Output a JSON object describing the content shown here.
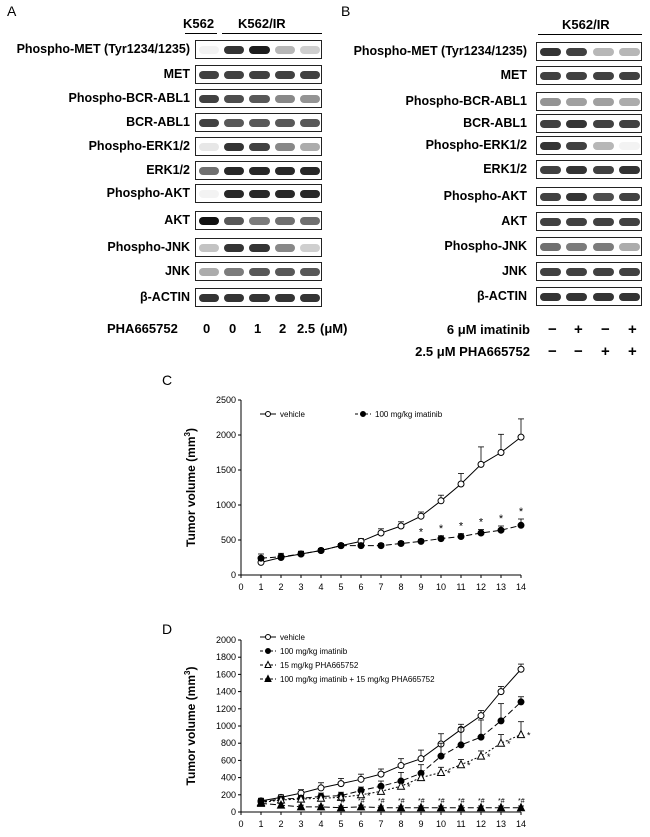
{
  "panels": {
    "a": "A",
    "b": "B",
    "c": "C",
    "d": "D"
  },
  "panelA": {
    "header_k562": "K562",
    "header_k562ir": "K562/IR",
    "rows": [
      "Phospho-MET (Tyr1234/1235)",
      "MET",
      "Phospho-BCR-ABL1",
      "BCR-ABL1",
      "Phospho-ERK1/2",
      "ERK1/2",
      "Phospho-AKT",
      "AKT",
      "Phospho-JNK",
      "JNK",
      "β-ACTIN"
    ],
    "bands": [
      [
        0.05,
        0.85,
        0.95,
        0.3,
        0.2
      ],
      [
        0.8,
        0.8,
        0.8,
        0.8,
        0.8
      ],
      [
        0.8,
        0.75,
        0.7,
        0.5,
        0.45
      ],
      [
        0.8,
        0.7,
        0.7,
        0.7,
        0.7
      ],
      [
        0.1,
        0.85,
        0.8,
        0.5,
        0.35
      ],
      [
        0.6,
        0.9,
        0.9,
        0.9,
        0.9
      ],
      [
        0.05,
        0.9,
        0.9,
        0.9,
        0.9
      ],
      [
        1.0,
        0.7,
        0.55,
        0.6,
        0.6
      ],
      [
        0.25,
        0.85,
        0.85,
        0.5,
        0.2
      ],
      [
        0.35,
        0.55,
        0.7,
        0.7,
        0.7
      ],
      [
        0.85,
        0.85,
        0.85,
        0.85,
        0.85
      ]
    ],
    "dose_label": "PHA665752",
    "doses": [
      "0",
      "0",
      "1",
      "2",
      "2.5"
    ],
    "unit": "(μM)"
  },
  "panelB": {
    "header": "K562/IR",
    "rows": [
      "Phospho-MET (Tyr1234/1235)",
      "MET",
      "Phospho-BCR-ABL1",
      "BCR-ABL1",
      "Phospho-ERK1/2",
      "ERK1/2",
      "Phospho-AKT",
      "AKT",
      "Phospho-JNK",
      "JNK",
      "β-ACTIN"
    ],
    "bands": [
      [
        0.85,
        0.8,
        0.3,
        0.3
      ],
      [
        0.8,
        0.8,
        0.8,
        0.8
      ],
      [
        0.45,
        0.4,
        0.4,
        0.35
      ],
      [
        0.8,
        0.85,
        0.8,
        0.8
      ],
      [
        0.85,
        0.8,
        0.3,
        0.05
      ],
      [
        0.8,
        0.85,
        0.8,
        0.85
      ],
      [
        0.8,
        0.85,
        0.75,
        0.8
      ],
      [
        0.8,
        0.8,
        0.8,
        0.8
      ],
      [
        0.6,
        0.55,
        0.55,
        0.35
      ],
      [
        0.8,
        0.8,
        0.8,
        0.8
      ],
      [
        0.85,
        0.85,
        0.85,
        0.85
      ]
    ],
    "treatments": [
      {
        "label": "6 μM imatinib",
        "signs": [
          "−",
          "+",
          "−",
          "+"
        ]
      },
      {
        "label": "2.5 μM PHA665752",
        "signs": [
          "−",
          "−",
          "+",
          "+"
        ]
      }
    ]
  },
  "chart_data": [
    {
      "type": "line",
      "title": "C",
      "xlabel": "",
      "ylabel": "Tumor volume (mm3)",
      "xlim": [
        0,
        14
      ],
      "ylim": [
        0,
        2500
      ],
      "xticks": [
        "0",
        "1",
        "2",
        "3",
        "4",
        "5",
        "6",
        "7",
        "8",
        "9",
        "10",
        "11",
        "12",
        "13",
        "14"
      ],
      "yticks": [
        "0",
        "500",
        "1000",
        "1500",
        "2000",
        "2500"
      ],
      "x": [
        1,
        2,
        3,
        4,
        5,
        6,
        7,
        8,
        9,
        10,
        11,
        12,
        13,
        14
      ],
      "series": [
        {
          "name": "vehicle",
          "marker": "open-circle",
          "dash": false,
          "values": [
            180,
            250,
            300,
            350,
            420,
            480,
            600,
            700,
            840,
            1060,
            1300,
            1580,
            1750,
            1970
          ],
          "errors": [
            30,
            40,
            30,
            30,
            30,
            40,
            60,
            60,
            60,
            80,
            150,
            250,
            260,
            260
          ]
        },
        {
          "name": "100 mg/kg imatinib",
          "marker": "filled-circle",
          "dash": true,
          "values": [
            240,
            260,
            300,
            350,
            420,
            420,
            420,
            450,
            480,
            520,
            550,
            600,
            640,
            710
          ],
          "errors": [
            60,
            50,
            40,
            30,
            30,
            30,
            30,
            30,
            30,
            40,
            40,
            50,
            60,
            90
          ]
        }
      ],
      "annotations": {
        "symbol": "*",
        "x": [
          9,
          10,
          11,
          12,
          13,
          14
        ]
      }
    },
    {
      "type": "line",
      "title": "D",
      "xlabel": "",
      "ylabel": "Tumor volume (mm3)",
      "xlim": [
        0,
        14
      ],
      "ylim": [
        0,
        2000
      ],
      "xticks": [
        "0",
        "1",
        "2",
        "3",
        "4",
        "5",
        "6",
        "7",
        "8",
        "9",
        "10",
        "11",
        "12",
        "13",
        "14"
      ],
      "yticks": [
        "0",
        "200",
        "400",
        "600",
        "800",
        "1000",
        "1200",
        "1400",
        "1600",
        "1800",
        "2000"
      ],
      "x": [
        1,
        2,
        3,
        4,
        5,
        6,
        7,
        8,
        9,
        10,
        11,
        12,
        13,
        14
      ],
      "series": [
        {
          "name": "vehicle",
          "marker": "open-circle",
          "dash": false,
          "values": [
            130,
            170,
            220,
            280,
            330,
            380,
            440,
            540,
            620,
            790,
            960,
            1120,
            1400,
            1660
          ],
          "errors": [
            30,
            30,
            40,
            60,
            60,
            60,
            60,
            80,
            100,
            120,
            60,
            60,
            60,
            60
          ]
        },
        {
          "name": "100 mg/kg imatinib",
          "marker": "filled-circle",
          "dash": true,
          "values": [
            120,
            150,
            160,
            180,
            190,
            250,
            300,
            360,
            450,
            650,
            780,
            870,
            1060,
            1280
          ],
          "errors": [
            30,
            30,
            30,
            40,
            40,
            40,
            60,
            100,
            100,
            150,
            200,
            200,
            200,
            60
          ]
        },
        {
          "name": "15 mg/kg PHA665752",
          "marker": "open-triangle",
          "dash": true,
          "values": [
            110,
            140,
            150,
            160,
            170,
            200,
            240,
            300,
            400,
            460,
            550,
            650,
            800,
            900
          ],
          "errors": [
            20,
            30,
            30,
            30,
            30,
            40,
            40,
            40,
            60,
            60,
            60,
            60,
            100,
            150
          ]
        },
        {
          "name": "100 mg/kg imatinib + 15 mg/kg PHA665752",
          "marker": "filled-triangle",
          "dash": true,
          "values": [
            100,
            80,
            60,
            60,
            50,
            60,
            50,
            50,
            50,
            50,
            50,
            50,
            50,
            50
          ],
          "errors": [
            20,
            20,
            20,
            20,
            20,
            20,
            20,
            20,
            20,
            20,
            20,
            20,
            20,
            20
          ]
        }
      ],
      "annotations": {
        "symbols": [
          "*",
          "#"
        ]
      }
    }
  ]
}
